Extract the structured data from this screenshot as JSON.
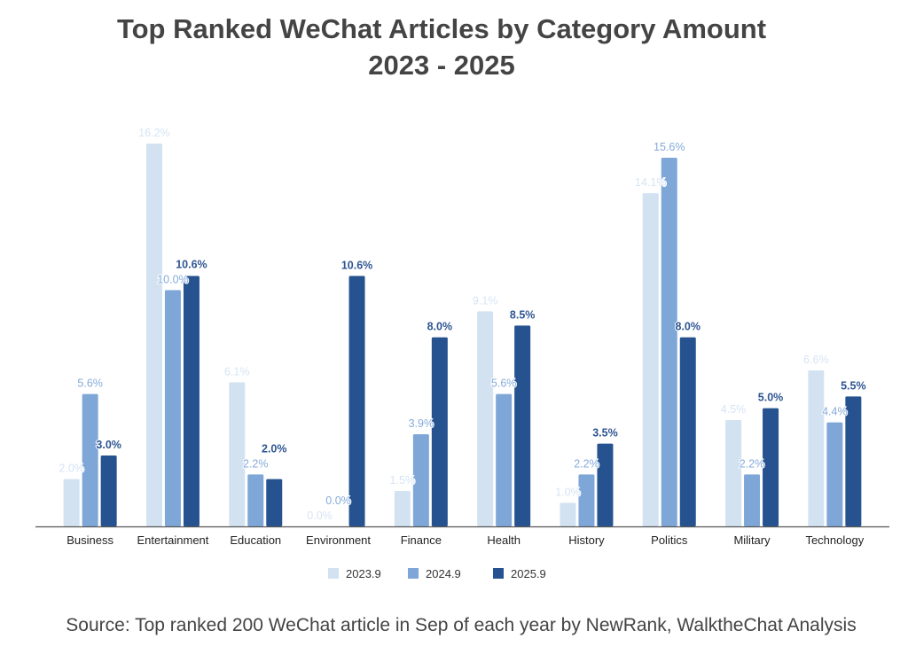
{
  "chart_data": {
    "type": "bar",
    "title": "Top Ranked WeChat Articles by Category Amount",
    "subtitle": "2023 - 2025",
    "categories": [
      "Business",
      "Entertainment",
      "Education",
      "Environment",
      "Finance",
      "Health",
      "History",
      "Politics",
      "Military",
      "Technology"
    ],
    "series": [
      {
        "name": "2023.9",
        "color": "#d3e2f1",
        "label_color": "#d6e4f4",
        "values": [
          2.0,
          16.2,
          6.1,
          0.0,
          1.5,
          9.1,
          1.0,
          14.1,
          4.5,
          6.6
        ],
        "labels": [
          "2.0%",
          "16.2%",
          "6.1%",
          "0.0%",
          "1.5%",
          "9.1%",
          "1.0%",
          "14.1%",
          "4.5%",
          "6.6%"
        ]
      },
      {
        "name": "2024.9",
        "color": "#7ea7d8",
        "label_color": "#86abd9",
        "values": [
          5.6,
          10.0,
          2.2,
          0.0,
          3.9,
          5.6,
          2.2,
          15.6,
          2.2,
          4.4
        ],
        "labels": [
          "5.6%",
          "10.0%",
          "2.2%",
          "0.0%",
          "3.9%",
          "5.6%",
          "2.2%",
          "15.6%",
          "2.2%",
          "4.4%"
        ]
      },
      {
        "name": "2025.9",
        "color": "#26538f",
        "label_color": "#2e5592",
        "values": [
          3.0,
          10.6,
          2.0,
          10.6,
          8.0,
          8.5,
          3.5,
          8.0,
          5.0,
          5.5
        ],
        "labels": [
          "3.0%",
          "10.6%",
          "2.0%",
          "10.6%",
          "8.0%",
          "8.5%",
          "3.5%",
          "8.0%",
          "5.0%",
          "5.5%"
        ]
      }
    ],
    "xlabel": "",
    "ylabel": "",
    "ylim": [
      0,
      16.2
    ],
    "grid": false,
    "legend": "bottom"
  },
  "source": "Source: Top ranked 200 WeChat article in Sep of each year by NewRank, WalktheChat Analysis"
}
